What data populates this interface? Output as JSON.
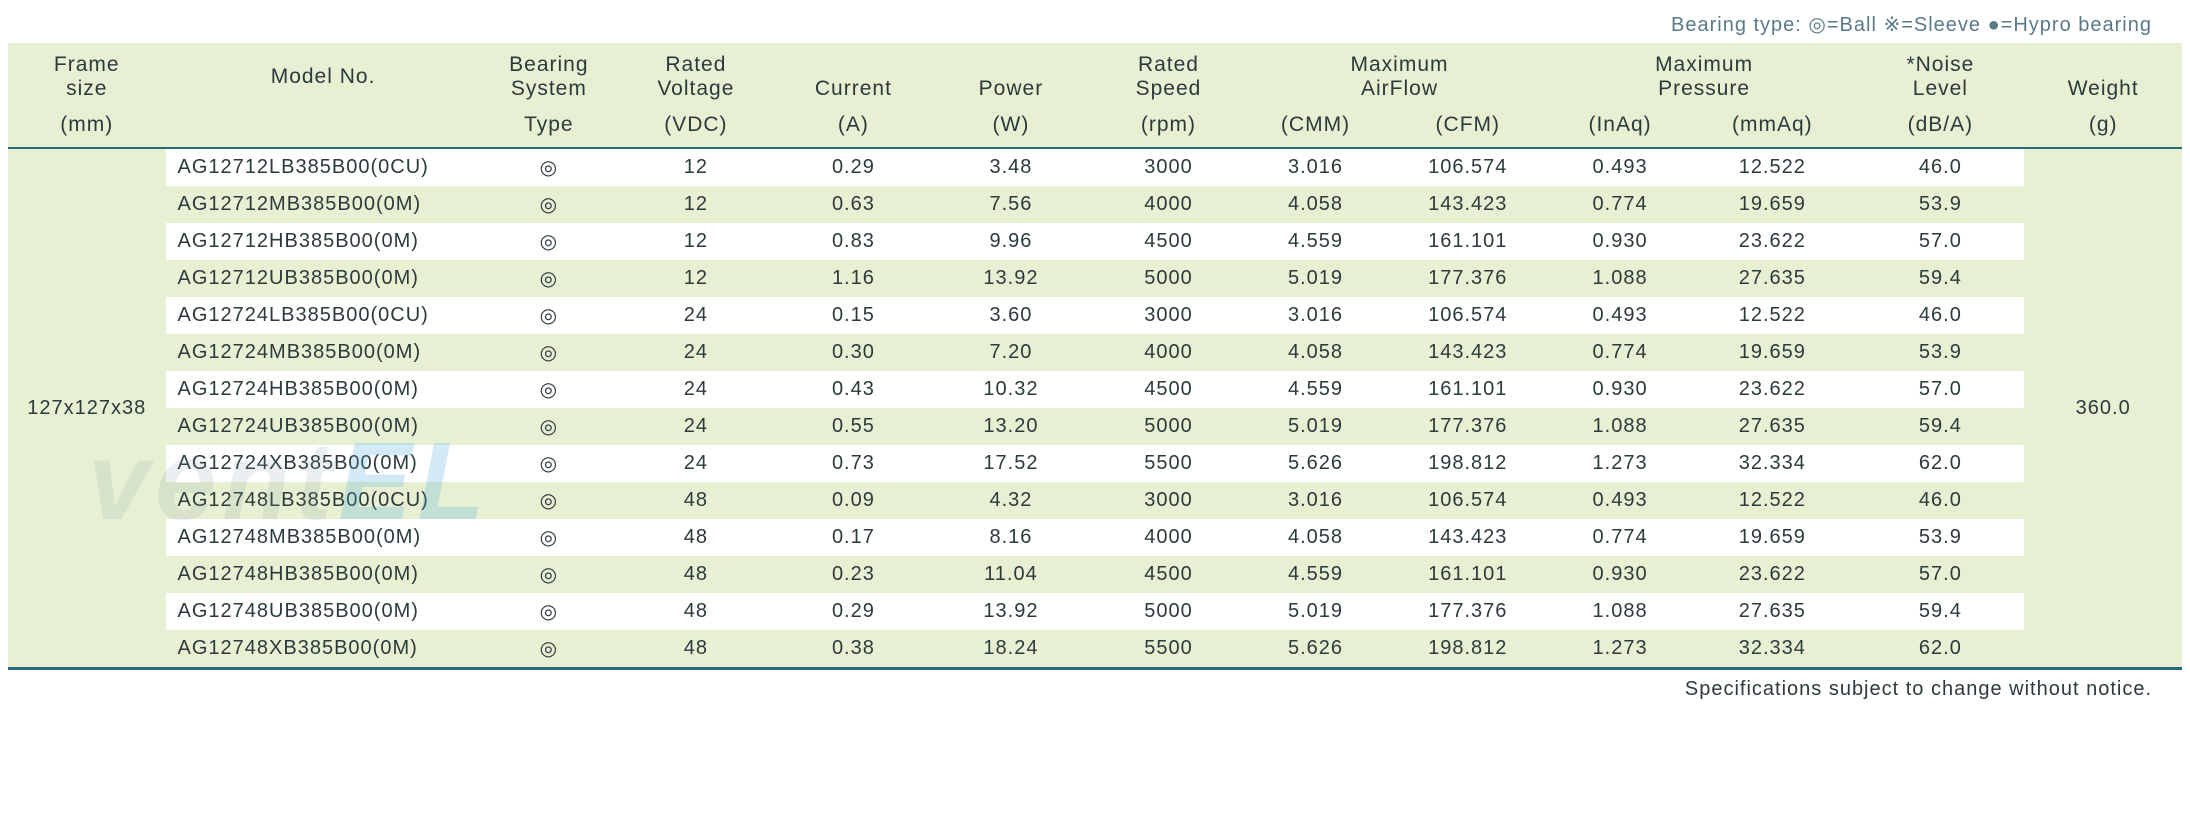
{
  "legend": {
    "label": "Bearing type:",
    "items": "◎=Ball ※=Sleeve ●=Hypro bearing"
  },
  "header": {
    "row1": {
      "frame": "Frame",
      "model": "",
      "bearing": "Bearing",
      "voltage": "Rated",
      "current": "",
      "power": "",
      "speed": "Rated",
      "airflow_group": "Maximum",
      "pressure_group": "Maximum",
      "noise": "*Noise",
      "weight": ""
    },
    "row2": {
      "frame": "size",
      "model": "Model No.",
      "bearing": "System",
      "voltage": "Voltage",
      "current": "Current",
      "power": "Power",
      "speed": "Speed",
      "airflow_group": "AirFlow",
      "pressure_group": "Pressure",
      "noise": "Level",
      "weight": "Weight"
    },
    "row3": {
      "frame": "(mm)",
      "model": "",
      "bearing": "Type",
      "voltage": "(VDC)",
      "current": "(A)",
      "power": "(W)",
      "speed": "(rpm)",
      "cmm": "(CMM)",
      "cfm": "(CFM)",
      "inaq": "(InAq)",
      "mmaq": "(mmAq)",
      "noise": "(dB/A)",
      "weight": "(g)"
    }
  },
  "frame_size": "127x127x38",
  "weight": "360.0",
  "rows": [
    {
      "model": "AG12712LB385B00(0CU)",
      "bearing": "◎",
      "voltage": "12",
      "current": "0.29",
      "power": "3.48",
      "speed": "3000",
      "cmm": "3.016",
      "cfm": "106.574",
      "inaq": "0.493",
      "mmaq": "12.522",
      "noise": "46.0"
    },
    {
      "model": "AG12712MB385B00(0M)",
      "bearing": "◎",
      "voltage": "12",
      "current": "0.63",
      "power": "7.56",
      "speed": "4000",
      "cmm": "4.058",
      "cfm": "143.423",
      "inaq": "0.774",
      "mmaq": "19.659",
      "noise": "53.9"
    },
    {
      "model": "AG12712HB385B00(0M)",
      "bearing": "◎",
      "voltage": "12",
      "current": "0.83",
      "power": "9.96",
      "speed": "4500",
      "cmm": "4.559",
      "cfm": "161.101",
      "inaq": "0.930",
      "mmaq": "23.622",
      "noise": "57.0"
    },
    {
      "model": "AG12712UB385B00(0M)",
      "bearing": "◎",
      "voltage": "12",
      "current": "1.16",
      "power": "13.92",
      "speed": "5000",
      "cmm": "5.019",
      "cfm": "177.376",
      "inaq": "1.088",
      "mmaq": "27.635",
      "noise": "59.4"
    },
    {
      "model": "AG12724LB385B00(0CU)",
      "bearing": "◎",
      "voltage": "24",
      "current": "0.15",
      "power": "3.60",
      "speed": "3000",
      "cmm": "3.016",
      "cfm": "106.574",
      "inaq": "0.493",
      "mmaq": "12.522",
      "noise": "46.0"
    },
    {
      "model": "AG12724MB385B00(0M)",
      "bearing": "◎",
      "voltage": "24",
      "current": "0.30",
      "power": "7.20",
      "speed": "4000",
      "cmm": "4.058",
      "cfm": "143.423",
      "inaq": "0.774",
      "mmaq": "19.659",
      "noise": "53.9"
    },
    {
      "model": "AG12724HB385B00(0M)",
      "bearing": "◎",
      "voltage": "24",
      "current": "0.43",
      "power": "10.32",
      "speed": "4500",
      "cmm": "4.559",
      "cfm": "161.101",
      "inaq": "0.930",
      "mmaq": "23.622",
      "noise": "57.0"
    },
    {
      "model": "AG12724UB385B00(0M)",
      "bearing": "◎",
      "voltage": "24",
      "current": "0.55",
      "power": "13.20",
      "speed": "5000",
      "cmm": "5.019",
      "cfm": "177.376",
      "inaq": "1.088",
      "mmaq": "27.635",
      "noise": "59.4"
    },
    {
      "model": "AG12724XB385B00(0M)",
      "bearing": "◎",
      "voltage": "24",
      "current": "0.73",
      "power": "17.52",
      "speed": "5500",
      "cmm": "5.626",
      "cfm": "198.812",
      "inaq": "1.273",
      "mmaq": "32.334",
      "noise": "62.0"
    },
    {
      "model": "AG12748LB385B00(0CU)",
      "bearing": "◎",
      "voltage": "48",
      "current": "0.09",
      "power": "4.32",
      "speed": "3000",
      "cmm": "3.016",
      "cfm": "106.574",
      "inaq": "0.493",
      "mmaq": "12.522",
      "noise": "46.0"
    },
    {
      "model": "AG12748MB385B00(0M)",
      "bearing": "◎",
      "voltage": "48",
      "current": "0.17",
      "power": "8.16",
      "speed": "4000",
      "cmm": "4.058",
      "cfm": "143.423",
      "inaq": "0.774",
      "mmaq": "19.659",
      "noise": "53.9"
    },
    {
      "model": "AG12748HB385B00(0M)",
      "bearing": "◎",
      "voltage": "48",
      "current": "0.23",
      "power": "11.04",
      "speed": "4500",
      "cmm": "4.559",
      "cfm": "161.101",
      "inaq": "0.930",
      "mmaq": "23.622",
      "noise": "57.0"
    },
    {
      "model": "AG12748UB385B00(0M)",
      "bearing": "◎",
      "voltage": "48",
      "current": "0.29",
      "power": "13.92",
      "speed": "5000",
      "cmm": "5.019",
      "cfm": "177.376",
      "inaq": "1.088",
      "mmaq": "27.635",
      "noise": "59.4"
    },
    {
      "model": "AG12748XB385B00(0M)",
      "bearing": "◎",
      "voltage": "48",
      "current": "0.38",
      "power": "18.24",
      "speed": "5500",
      "cmm": "5.626",
      "cfm": "198.812",
      "inaq": "1.273",
      "mmaq": "32.334",
      "noise": "62.0"
    }
  ],
  "footnote": "Specifications subject to change without notice.",
  "watermark": {
    "part1": "vent",
    "part2": "EL"
  },
  "colors": {
    "header_bg": "#e7f0d2",
    "row_alt_bg": "#e7f0d2",
    "border": "#2a6b7a",
    "text": "#2b3a3d",
    "legend_text": "#5a7a8a"
  }
}
